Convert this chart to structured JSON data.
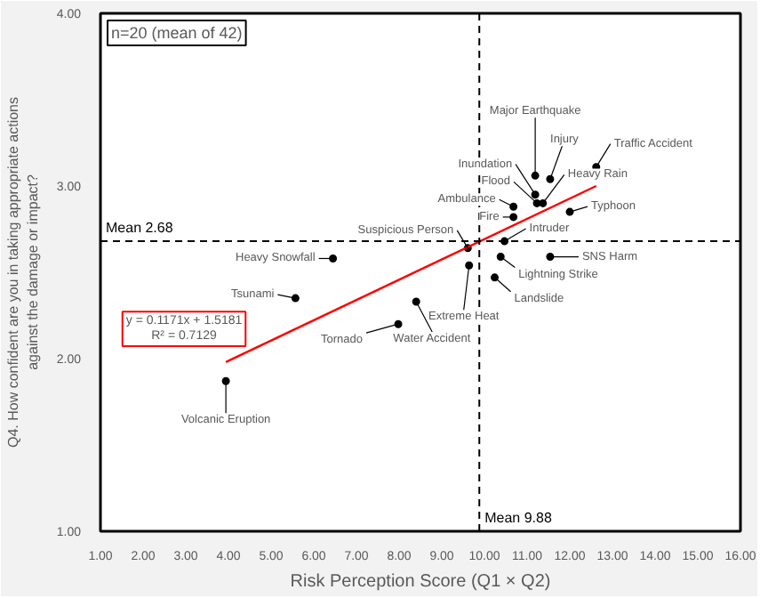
{
  "chart_data": {
    "type": "scatter",
    "xlabel": "Risk Perception Score (Q1 × Q2)",
    "ylabel": "Q4. How confident are you in taking appropriate actions\nagainst the damage or impact?",
    "xlim": [
      1,
      16
    ],
    "ylim": [
      1,
      4
    ],
    "xticks": [
      {
        "value": 1,
        "label": "1.00"
      },
      {
        "value": 2,
        "label": "2.00"
      },
      {
        "value": 3,
        "label": "3.00"
      },
      {
        "value": 4,
        "label": "4.00"
      },
      {
        "value": 5,
        "label": "5.00"
      },
      {
        "value": 6,
        "label": "6.00"
      },
      {
        "value": 7,
        "label": "7.00"
      },
      {
        "value": 8,
        "label": "8.00"
      },
      {
        "value": 9,
        "label": "9.00"
      },
      {
        "value": 10,
        "label": "10.00"
      },
      {
        "value": 11,
        "label": "11.00"
      },
      {
        "value": 12,
        "label": "12.00"
      },
      {
        "value": 13,
        "label": "13.00"
      },
      {
        "value": 14,
        "label": "14.00"
      },
      {
        "value": 15,
        "label": "15.00"
      },
      {
        "value": 16,
        "label": "16.00"
      }
    ],
    "yticks": [
      {
        "value": 1,
        "label": "1.00"
      },
      {
        "value": 2,
        "label": "2.00"
      },
      {
        "value": 3,
        "label": "3.00"
      },
      {
        "value": 4,
        "label": "4.00"
      }
    ],
    "grid": false,
    "series": [
      {
        "marker": "circle",
        "color": "#000000",
        "x": [
          3.94,
          5.57,
          6.45,
          7.98,
          8.4,
          9.64,
          9.61,
          10.47,
          10.38,
          11.54,
          10.24,
          10.68,
          10.68,
          11.23,
          11.19,
          11.19,
          11.54,
          11.37,
          12.0,
          12.62
        ],
        "values": [
          1.87,
          2.35,
          2.58,
          2.2,
          2.33,
          2.54,
          2.64,
          2.68,
          2.59,
          2.59,
          2.47,
          2.82,
          2.88,
          2.9,
          2.95,
          3.06,
          3.04,
          2.9,
          2.85,
          3.11
        ]
      },
      {
        "type": "line",
        "color": "#ff0000",
        "x": [
          3.94,
          12.62
        ],
        "values": [
          1.98,
          3.0
        ]
      }
    ],
    "ref_lines": [
      {
        "axis": "y",
        "value": 2.68,
        "label": "Mean 2.68",
        "color": "#000000",
        "line_style": "dashed"
      },
      {
        "axis": "x",
        "value": 9.88,
        "label": "Mean 9.88",
        "color": "#000000",
        "line_style": "dashed"
      }
    ],
    "annotations": [
      "n=20 (mean of 42)",
      "y = 0.1171x + 1.5181\nR² = 0.7129",
      {
        "text": "Volcanic Eruption",
        "x": 3.94,
        "y": 1.87
      },
      {
        "text": "Tsunami",
        "x": 5.57,
        "y": 2.35
      },
      {
        "text": "Heavy Snowfall",
        "x": 6.45,
        "y": 2.58
      },
      {
        "text": "Tornado",
        "x": 7.98,
        "y": 2.2
      },
      {
        "text": "Water Accident",
        "x": 8.4,
        "y": 2.33
      },
      {
        "text": "Extreme Heat",
        "x": 9.64,
        "y": 2.54
      },
      {
        "text": "Suspicious Person",
        "x": 9.61,
        "y": 2.64
      },
      {
        "text": "Intruder",
        "x": 10.47,
        "y": 2.68
      },
      {
        "text": "Lightning Strike",
        "x": 10.38,
        "y": 2.59
      },
      {
        "text": "SNS Harm",
        "x": 11.54,
        "y": 2.59
      },
      {
        "text": "Landslide",
        "x": 10.24,
        "y": 2.47
      },
      {
        "text": "Fire",
        "x": 10.68,
        "y": 2.82
      },
      {
        "text": "Ambulance",
        "x": 10.68,
        "y": 2.88
      },
      {
        "text": "Flood",
        "x": 11.23,
        "y": 2.9
      },
      {
        "text": "Inundation",
        "x": 11.19,
        "y": 2.95
      },
      {
        "text": "Major Earthquake",
        "x": 11.19,
        "y": 3.06
      },
      {
        "text": "Injury",
        "x": 11.54,
        "y": 3.04
      },
      {
        "text": "Heavy Rain",
        "x": 11.37,
        "y": 2.9
      },
      {
        "text": "Typhoon",
        "x": 12.0,
        "y": 2.85
      },
      {
        "text": "Traffic Accident",
        "x": 12.62,
        "y": 3.11
      }
    ]
  }
}
